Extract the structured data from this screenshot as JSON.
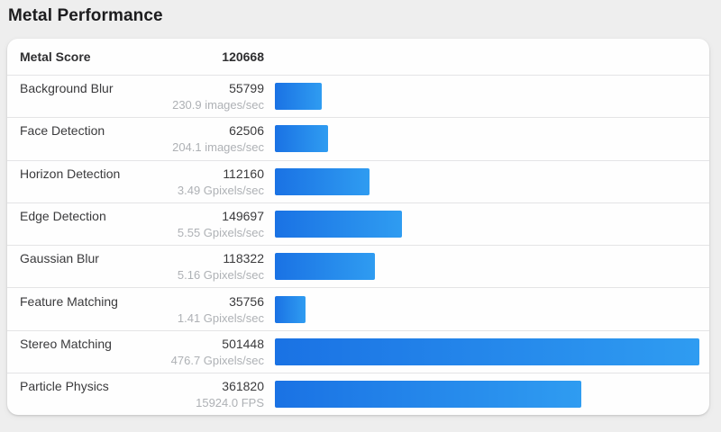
{
  "page": {
    "title": "Metal Performance",
    "background_color": "#eeeeee",
    "card_color": "#fefefe"
  },
  "summary": {
    "label": "Metal Score",
    "value": "120668"
  },
  "chart_data": {
    "type": "bar",
    "orientation": "horizontal",
    "title": "Metal Performance",
    "summary_label": "Metal Score",
    "summary_value": 120668,
    "categories": [
      "Background Blur",
      "Face Detection",
      "Horizon Detection",
      "Edge Detection",
      "Gaussian Blur",
      "Feature Matching",
      "Stereo Matching",
      "Particle Physics"
    ],
    "values": [
      55799,
      62506,
      112160,
      149697,
      118322,
      35756,
      501448,
      361820
    ],
    "rate_labels": [
      "230.9 images/sec",
      "204.1 images/sec",
      "3.49 Gpixels/sec",
      "5.55 Gpixels/sec",
      "5.16 Gpixels/sec",
      "1.41 Gpixels/sec",
      "476.7 Gpixels/sec",
      "15924.0 FPS"
    ],
    "xlim": [
      0,
      501448
    ],
    "grid": false,
    "legend": "none",
    "bar_gradient": [
      "#1a72e4",
      "#2f9cf1"
    ]
  }
}
